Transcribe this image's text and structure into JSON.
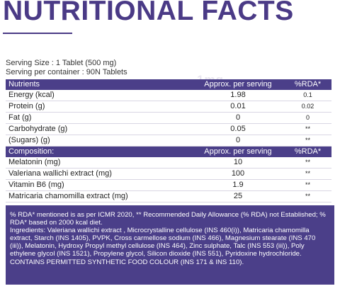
{
  "title": "NUTRITIONAL FACTS",
  "watermark": "1mg",
  "serving": {
    "size": "Serving Size : 1 Tablet (500 mg)",
    "per_container": "Serving per container : 90N  Tablets"
  },
  "table1": {
    "headers": [
      "Nutrients",
      "Approx. per serving",
      "%RDA*"
    ],
    "rows": [
      {
        "name": "Energy (kcal)",
        "value": "1.98",
        "rda": "0.1"
      },
      {
        "name": "Protein (g)",
        "value": "0.01",
        "rda": "0.02"
      },
      {
        "name": "Fat (g)",
        "value": "0",
        "rda": "0"
      },
      {
        "name": "Carbohydrate (g)",
        "value": "0.05",
        "rda": "**"
      },
      {
        "name": "(Sugars) (g)",
        "value": "0",
        "rda": "**"
      }
    ]
  },
  "table2": {
    "headers": [
      "Composition:",
      "Approx. per serving",
      "%RDA*"
    ],
    "rows": [
      {
        "name": "Melatonin (mg)",
        "value": "10",
        "rda": "**"
      },
      {
        "name": "Valeriana  wallichi extract (mg)",
        "value": "100",
        "rda": "**"
      },
      {
        "name": "Vitamin B6 (mg)",
        "value": "1.9",
        "rda": "**"
      },
      {
        "name": "Matricaria chamomilla extract (mg)",
        "value": "25",
        "rda": "**"
      }
    ]
  },
  "notes": {
    "rda_note": "% RDA* mentioned is as per ICMR 2020, ** Recommended Daily Allowance (% RDA) not Established; % RDA* based on 2000 kcal diet.",
    "ingredients": "Ingredients: Valeriana  wallichi extract , Microcrystalline cellulose (INS 460(i)), Matricaria chamomilla extract,  Starch (INS 1405), PVPK, Cross carmellose sodium (INS 466), Magnesium stearate (INS 470 (iii)), Melatonin, Hydroxy Propyl methyl cellulose (INS 464), Zinc sulphate, Talc (INS 553 (iii)), Poly ethylene glycol (INS 1521), Propylene glycol, Silicon dioxide (INS 551), Pyridoxine hydrochloride.",
    "colour": "CONTAINS PERMITTED SYNTHETIC FOOD COLOUR (INS 171 & INS 110)."
  },
  "colors": {
    "accent": "#4b3f89",
    "title": "#4a3a86"
  }
}
